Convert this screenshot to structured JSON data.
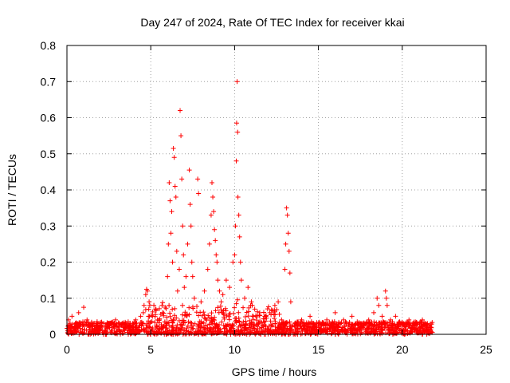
{
  "chart_data": {
    "type": "scatter",
    "title": "Day 247 of 2024, Rate Of TEC Index for receiver kkai",
    "xlabel": "GPS time / hours",
    "ylabel": "ROTI / TECUs",
    "xlim": [
      0,
      25
    ],
    "ylim": [
      0,
      0.8
    ],
    "x_ticks": [
      0,
      5,
      10,
      15,
      20,
      25
    ],
    "y_ticks": [
      0,
      0.1,
      0.2,
      0.3,
      0.4,
      0.5,
      0.6,
      0.7,
      0.8
    ],
    "x_tick_labels": [
      "0",
      "5",
      "10",
      "15",
      "20",
      "25"
    ],
    "y_tick_labels": [
      "0",
      "0.1",
      "0.2",
      "0.3",
      "0.4",
      "0.5",
      "0.6",
      "0.7",
      "0.8"
    ],
    "grid": true,
    "marker": "+",
    "color": "#ff0000",
    "series": [
      {
        "name": "ROTI",
        "points": [
          [
            0.1,
            0.04
          ],
          [
            0.3,
            0.05
          ],
          [
            0.5,
            0.03
          ],
          [
            0.7,
            0.06
          ],
          [
            1.0,
            0.075
          ],
          [
            1.2,
            0.04
          ],
          [
            1.5,
            0.03
          ],
          [
            1.8,
            0.035
          ],
          [
            2.1,
            0.02
          ],
          [
            2.5,
            0.03
          ],
          [
            2.9,
            0.04
          ],
          [
            3.3,
            0.03
          ],
          [
            3.7,
            0.025
          ],
          [
            4.1,
            0.04
          ],
          [
            4.4,
            0.05
          ],
          [
            4.6,
            0.08
          ],
          [
            4.7,
            0.11
          ],
          [
            4.75,
            0.125
          ],
          [
            4.8,
            0.12
          ],
          [
            4.9,
            0.09
          ],
          [
            5.1,
            0.05
          ],
          [
            5.4,
            0.04
          ],
          [
            5.7,
            0.06
          ],
          [
            6.0,
            0.16
          ],
          [
            6.05,
            0.25
          ],
          [
            6.1,
            0.42
          ],
          [
            6.15,
            0.37
          ],
          [
            6.2,
            0.28
          ],
          [
            6.25,
            0.34
          ],
          [
            6.3,
            0.2
          ],
          [
            6.35,
            0.515
          ],
          [
            6.4,
            0.49
          ],
          [
            6.45,
            0.41
          ],
          [
            6.5,
            0.38
          ],
          [
            6.55,
            0.23
          ],
          [
            6.6,
            0.12
          ],
          [
            6.7,
            0.18
          ],
          [
            6.75,
            0.62
          ],
          [
            6.8,
            0.55
          ],
          [
            6.85,
            0.43
          ],
          [
            6.9,
            0.3
          ],
          [
            6.95,
            0.22
          ],
          [
            7.0,
            0.13
          ],
          [
            7.1,
            0.16
          ],
          [
            7.2,
            0.25
          ],
          [
            7.3,
            0.455
          ],
          [
            7.35,
            0.36
          ],
          [
            7.4,
            0.3
          ],
          [
            7.45,
            0.2
          ],
          [
            7.5,
            0.16
          ],
          [
            7.6,
            0.1
          ],
          [
            7.8,
            0.43
          ],
          [
            7.85,
            0.39
          ],
          [
            8.0,
            0.09
          ],
          [
            8.2,
            0.12
          ],
          [
            8.4,
            0.18
          ],
          [
            8.5,
            0.25
          ],
          [
            8.6,
            0.33
          ],
          [
            8.65,
            0.42
          ],
          [
            8.7,
            0.38
          ],
          [
            8.75,
            0.34
          ],
          [
            8.8,
            0.29
          ],
          [
            8.85,
            0.26
          ],
          [
            8.9,
            0.22
          ],
          [
            8.95,
            0.2
          ],
          [
            9.0,
            0.15
          ],
          [
            9.1,
            0.12
          ],
          [
            9.2,
            0.09
          ],
          [
            9.3,
            0.11
          ],
          [
            9.5,
            0.15
          ],
          [
            9.7,
            0.13
          ],
          [
            9.9,
            0.2
          ],
          [
            10.0,
            0.22
          ],
          [
            10.05,
            0.3
          ],
          [
            10.1,
            0.48
          ],
          [
            10.12,
            0.585
          ],
          [
            10.15,
            0.7
          ],
          [
            10.18,
            0.56
          ],
          [
            10.2,
            0.38
          ],
          [
            10.25,
            0.33
          ],
          [
            10.3,
            0.27
          ],
          [
            10.35,
            0.2
          ],
          [
            10.4,
            0.15
          ],
          [
            10.6,
            0.1
          ],
          [
            10.8,
            0.13
          ],
          [
            11.0,
            0.09
          ],
          [
            11.2,
            0.07
          ],
          [
            11.5,
            0.06
          ],
          [
            11.8,
            0.05
          ],
          [
            12.1,
            0.06
          ],
          [
            12.4,
            0.08
          ],
          [
            12.6,
            0.09
          ],
          [
            12.8,
            0.04
          ],
          [
            13.0,
            0.18
          ],
          [
            13.05,
            0.25
          ],
          [
            13.1,
            0.35
          ],
          [
            13.15,
            0.33
          ],
          [
            13.2,
            0.28
          ],
          [
            13.25,
            0.23
          ],
          [
            13.3,
            0.17
          ],
          [
            13.35,
            0.09
          ],
          [
            13.6,
            0.03
          ],
          [
            14.0,
            0.04
          ],
          [
            14.5,
            0.05
          ],
          [
            15.0,
            0.03
          ],
          [
            15.5,
            0.04
          ],
          [
            16.0,
            0.06
          ],
          [
            16.5,
            0.04
          ],
          [
            17.0,
            0.05
          ],
          [
            17.5,
            0.03
          ],
          [
            18.0,
            0.04
          ],
          [
            18.3,
            0.06
          ],
          [
            18.5,
            0.1
          ],
          [
            18.6,
            0.08
          ],
          [
            18.8,
            0.05
          ],
          [
            19.0,
            0.12
          ],
          [
            19.05,
            0.1
          ],
          [
            19.1,
            0.08
          ],
          [
            19.3,
            0.04
          ],
          [
            19.6,
            0.05
          ],
          [
            20.0,
            0.03
          ],
          [
            20.4,
            0.04
          ],
          [
            20.8,
            0.03
          ],
          [
            21.2,
            0.04
          ],
          [
            21.5,
            0.03
          ],
          [
            21.7,
            0.02
          ]
        ]
      }
    ]
  }
}
